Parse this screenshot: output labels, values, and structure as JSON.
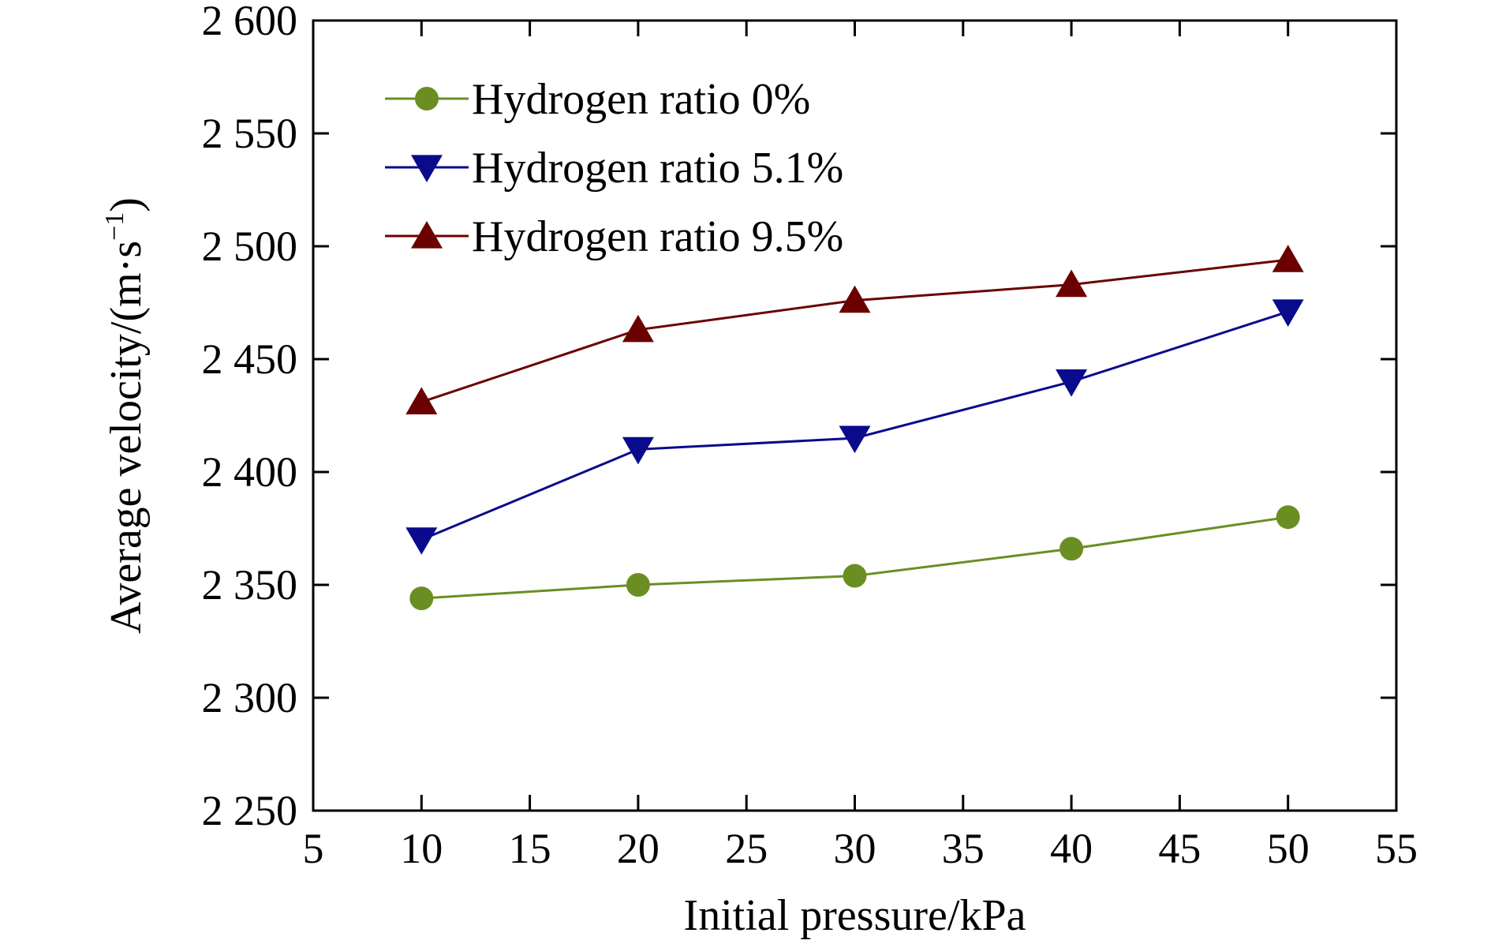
{
  "chart_data": {
    "type": "line",
    "xlabel": "Initial pressure/kPa",
    "ylabel": {
      "main": "Average velocity/(m·s",
      "superscript": "−1",
      "close": ")"
    },
    "xlim": [
      5,
      55
    ],
    "ylim": [
      2250,
      2600
    ],
    "x_ticks": [
      5,
      10,
      15,
      20,
      25,
      30,
      35,
      40,
      45,
      50,
      55
    ],
    "x_tick_labels": [
      "5",
      "10",
      "15",
      "20",
      "25",
      "30",
      "35",
      "40",
      "45",
      "50",
      "55"
    ],
    "y_ticks": [
      2250,
      2300,
      2350,
      2400,
      2450,
      2500,
      2550,
      2600
    ],
    "y_tick_labels": [
      "2 250",
      "2 300",
      "2 350",
      "2 400",
      "2 450",
      "2 500",
      "2 550",
      "2 600"
    ],
    "grid": false,
    "legend_position": "top-left",
    "series": [
      {
        "name": "Hydrogen ratio 0%",
        "marker": "circle",
        "color": "#6b8e23",
        "x": [
          10,
          20,
          30,
          40,
          50
        ],
        "values": [
          2344,
          2350,
          2354,
          2366,
          2380
        ]
      },
      {
        "name": "Hydrogen ratio 5.1%",
        "marker": "triangle-down",
        "color": "#0a0a8c",
        "x": [
          10,
          20,
          30,
          40,
          50
        ],
        "values": [
          2370,
          2410,
          2415,
          2440,
          2471
        ]
      },
      {
        "name": "Hydrogen ratio 9.5%",
        "marker": "triangle-up",
        "color": "#6b0000",
        "x": [
          10,
          20,
          30,
          40,
          50
        ],
        "values": [
          2431,
          2463,
          2476,
          2483,
          2494
        ]
      }
    ]
  }
}
